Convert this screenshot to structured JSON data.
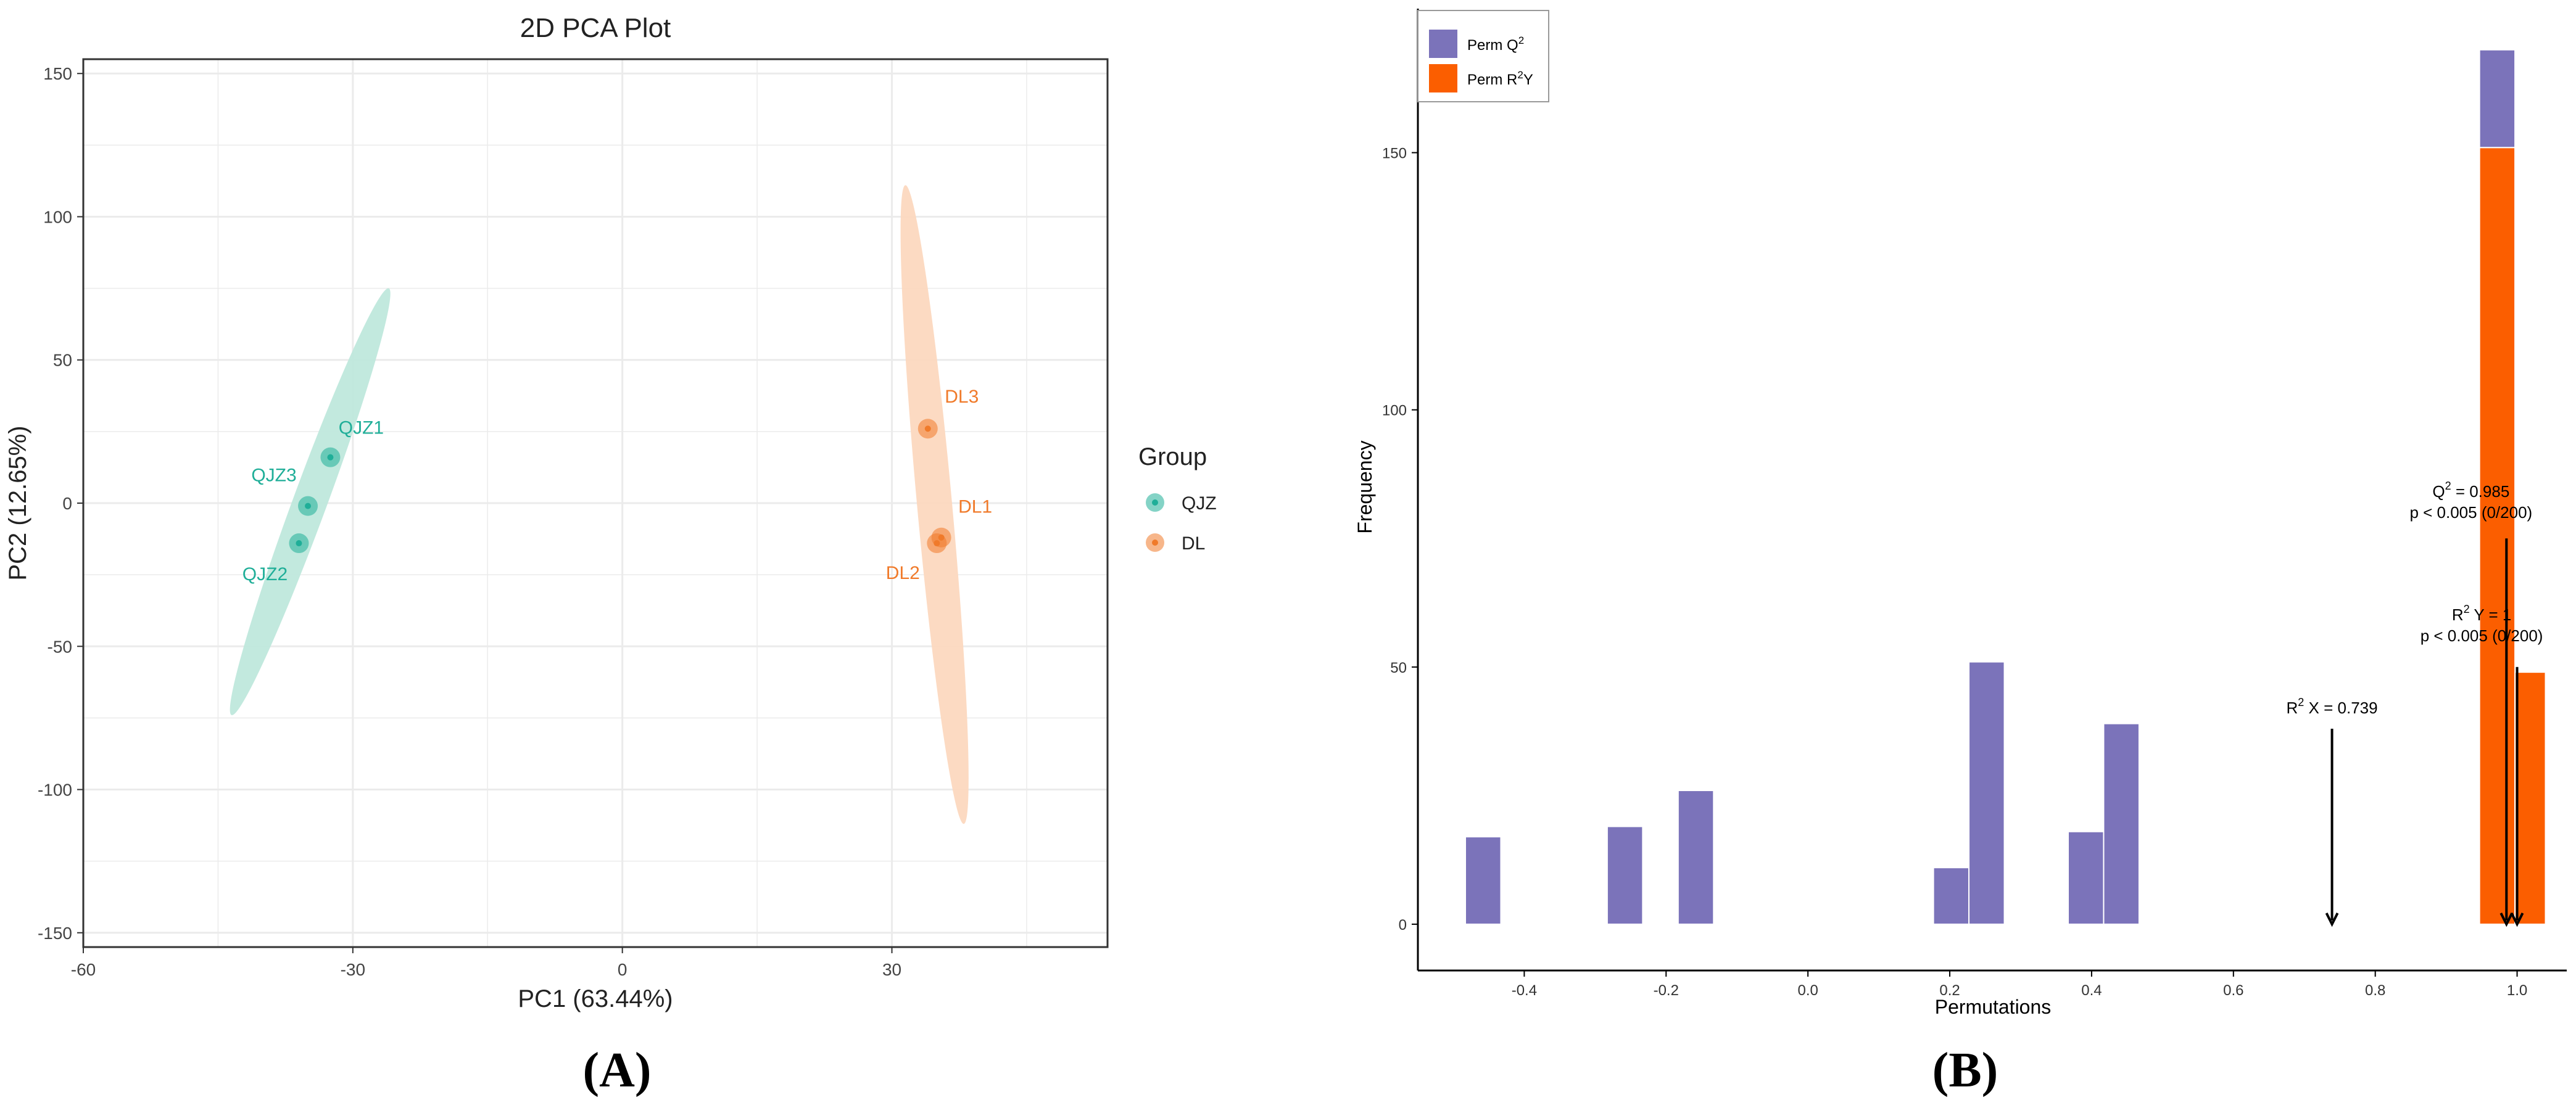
{
  "colors": {
    "qjz": "#1fae98",
    "qjz_fill": "#bfe8dc",
    "dl": "#f07a2a",
    "dl_fill": "#fcd8bf",
    "perm_q2": "#7b73ba",
    "perm_r2y": "#fb5e00",
    "grid": "#ebebeb",
    "axis": "#333333"
  },
  "chart_data": [
    {
      "panel_label": "(A)",
      "type": "scatter",
      "title": "2D PCA Plot",
      "xlabel": "PC1 (63.44%)",
      "ylabel": "PC2 (12.65%)",
      "xlim": [
        -60,
        54
      ],
      "ylim": [
        -155,
        155
      ],
      "xticks": [
        -60,
        -30,
        0,
        30
      ],
      "yticks": [
        -150,
        -100,
        -50,
        0,
        50,
        100,
        150
      ],
      "grid": true,
      "legend": {
        "title": "Group",
        "placement": "right",
        "entries": [
          {
            "name": "QJZ",
            "color_key": "qjz"
          },
          {
            "name": "DL",
            "color_key": "dl"
          }
        ]
      },
      "series": [
        {
          "name": "QJZ",
          "color_key": "qjz",
          "fill_key": "qjz_fill",
          "points": [
            {
              "label": "QJZ1",
              "x": -32.5,
              "y": 16
            },
            {
              "label": "QJZ3",
              "x": -35.0,
              "y": -1
            },
            {
              "label": "QJZ2",
              "x": -36.0,
              "y": -14
            }
          ],
          "ellipse": {
            "end1": [
              -26,
              75
            ],
            "end2": [
              -43.5,
              -74
            ],
            "half_width": 1.9
          }
        },
        {
          "name": "DL",
          "color_key": "dl",
          "fill_key": "dl_fill",
          "points": [
            {
              "label": "DL3",
              "x": 34.0,
              "y": 26
            },
            {
              "label": "DL1",
              "x": 35.5,
              "y": -12
            },
            {
              "label": "DL2",
              "x": 35.0,
              "y": -14
            }
          ],
          "ellipse": {
            "end1": [
              31.5,
              111
            ],
            "end2": [
              38,
              -112
            ],
            "half_width": 1.95
          }
        }
      ]
    },
    {
      "panel_label": "(B)",
      "type": "bar",
      "xlabel": "Permutations",
      "ylabel": "Frequency",
      "xlim": [
        -0.55,
        1.07
      ],
      "ylim": [
        -9,
        178
      ],
      "xticks": [
        -0.4,
        -0.2,
        0.0,
        0.2,
        0.4,
        0.6,
        0.8,
        1.0
      ],
      "xtick_labels": [
        "-0.4",
        "-0.2",
        "0.0",
        "0.2",
        "0.4",
        "0.6",
        "0.8",
        "1.0"
      ],
      "yticks": [
        0,
        50,
        100,
        150
      ],
      "grid": false,
      "legend": {
        "placement": "top-left",
        "entries": [
          {
            "name": "Perm Q",
            "sup": "2",
            "suffix": "",
            "color_key": "perm_q2"
          },
          {
            "name": "Perm R",
            "sup": "2",
            "suffix": "Y",
            "color_key": "perm_r2y"
          }
        ]
      },
      "bars": [
        {
          "x0": -0.483,
          "x1": -0.433,
          "bottom": 0,
          "top": 17,
          "color_key": "perm_q2"
        },
        {
          "x0": -0.283,
          "x1": -0.233,
          "bottom": 0,
          "top": 19,
          "color_key": "perm_q2"
        },
        {
          "x0": -0.183,
          "x1": -0.133,
          "bottom": 0,
          "top": 26,
          "color_key": "perm_q2"
        },
        {
          "x0": 0.177,
          "x1": 0.227,
          "bottom": 0,
          "top": 11,
          "color_key": "perm_q2"
        },
        {
          "x0": 0.227,
          "x1": 0.277,
          "bottom": 0,
          "top": 51,
          "color_key": "perm_q2"
        },
        {
          "x0": 0.367,
          "x1": 0.417,
          "bottom": 0,
          "top": 18,
          "color_key": "perm_q2"
        },
        {
          "x0": 0.417,
          "x1": 0.467,
          "bottom": 0,
          "top": 39,
          "color_key": "perm_q2"
        },
        {
          "x0": 0.947,
          "x1": 0.997,
          "bottom": 0,
          "top": 151,
          "color_key": "perm_r2y"
        },
        {
          "x0": 0.947,
          "x1": 0.997,
          "bottom": 151,
          "top": 170,
          "color_key": "perm_q2"
        },
        {
          "x0": 0.997,
          "x1": 1.04,
          "bottom": 0,
          "top": 49,
          "color_key": "perm_r2y"
        }
      ],
      "annotations": [
        {
          "pre": "Q",
          "sup": "2",
          "post": " = 0.985",
          "line2": "p < 0.005 (0/200)",
          "text_x": 0.935,
          "text_y": 79,
          "arrow_x": 0.985,
          "arrow_top": 75
        },
        {
          "pre": "R",
          "sup": "2",
          "post": " Y = 1",
          "line2": "p < 0.005 (0/200)",
          "text_x": 0.95,
          "text_y": 55,
          "arrow_x": 1.0,
          "arrow_top": 50
        },
        {
          "pre": "R",
          "sup": "2",
          "post": " X = 0.739",
          "line2": "",
          "text_x": 0.739,
          "text_y": 41,
          "arrow_x": 0.739,
          "arrow_top": 38
        }
      ]
    }
  ]
}
